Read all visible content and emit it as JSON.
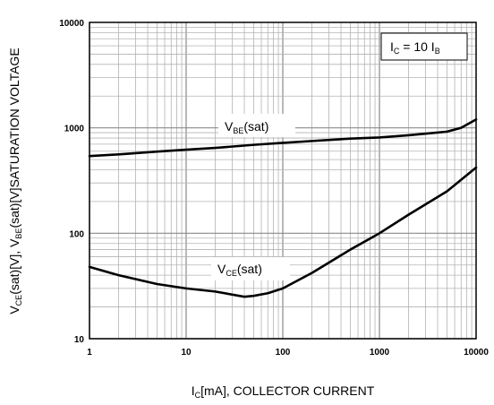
{
  "chart_data": {
    "type": "line",
    "x_scale": "log",
    "y_scale": "log",
    "xlim": [
      1,
      10000
    ],
    "ylim": [
      10,
      10000
    ],
    "x_ticks": [
      "1",
      "10",
      "100",
      "1000",
      "10000"
    ],
    "y_ticks": [
      "10",
      "100",
      "1000",
      "10000"
    ],
    "xlabel": {
      "pre": "I",
      "sub": "C",
      "post": "[mA], COLLECTOR CURRENT"
    },
    "ylabel": {
      "p1": "V",
      "s1": "CE",
      "p2": "(sat)[V], V",
      "s2": "BE",
      "p3": "(sat)[V]SATURATION VOLTAGE"
    },
    "annotation": {
      "p1": "I",
      "s1": "C",
      "p2": " = 10 I",
      "s2": "B"
    },
    "grid": true,
    "series": [
      {
        "label": {
          "main": "V",
          "sub": "BE",
          "post": "(sat)"
        },
        "x": [
          1,
          2,
          5,
          10,
          20,
          50,
          100,
          200,
          500,
          1000,
          2000,
          5000,
          7000,
          10000
        ],
        "y": [
          540,
          560,
          595,
          620,
          645,
          690,
          720,
          750,
          790,
          810,
          850,
          920,
          1000,
          1200
        ]
      },
      {
        "label": {
          "main": "V",
          "sub": "CE",
          "post": "(sat)"
        },
        "x": [
          1,
          2,
          5,
          10,
          20,
          40,
          50,
          70,
          100,
          200,
          500,
          1000,
          2000,
          5000,
          10000
        ],
        "y": [
          48,
          40,
          33,
          30,
          28,
          25,
          25.5,
          27,
          30,
          42,
          70,
          100,
          150,
          250,
          420
        ]
      }
    ]
  }
}
